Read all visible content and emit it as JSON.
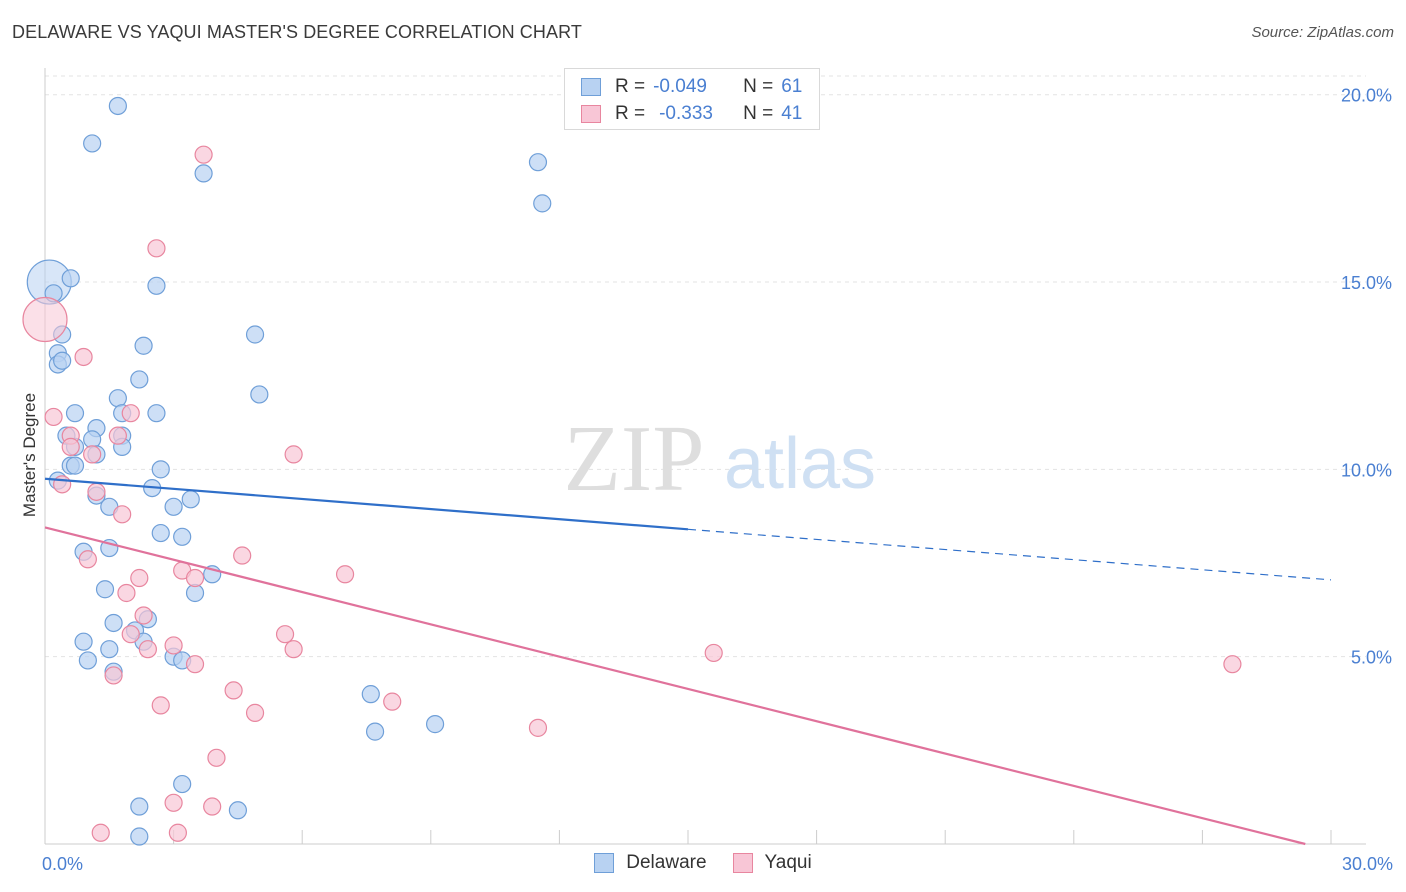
{
  "title": "DELAWARE VS YAQUI MASTER'S DEGREE CORRELATION CHART",
  "source": "Source: ZipAtlas.com",
  "watermark": {
    "zip": "ZIP",
    "atlas": "atlas"
  },
  "legend": {
    "rows": [
      {
        "r_label": "R =",
        "r_value": "-0.049",
        "n_label": "N =",
        "n_value": "61"
      },
      {
        "r_label": "R =",
        "r_value": "-0.333",
        "n_label": "N =",
        "n_value": "41"
      }
    ]
  },
  "colors": {
    "delaware_fill": "#b8d2f2",
    "delaware_stroke": "#6f9fd8",
    "delaware_line": "#2f6fc9",
    "yaqui_fill": "#f8c6d6",
    "yaqui_stroke": "#e8869f",
    "yaqui_line": "#e0729b",
    "tick_text": "#4a7fd1",
    "grid": "#e3e3e3"
  },
  "chart_data": {
    "type": "scatter",
    "title": "DELAWARE VS YAQUI MASTER'S DEGREE CORRELATION CHART",
    "xlabel": "",
    "ylabel": "Master's Degree",
    "xlim": [
      0,
      30
    ],
    "ylim": [
      0,
      20.5
    ],
    "x_tick_labels": [
      {
        "value": 0,
        "label": "0.0%"
      },
      {
        "value": 30,
        "label": "30.0%"
      }
    ],
    "x_minor_ticks": [
      3,
      6,
      9,
      12,
      15,
      18,
      21,
      24,
      27,
      30
    ],
    "y_ticks": [
      {
        "value": 5,
        "label": "5.0%"
      },
      {
        "value": 10,
        "label": "10.0%"
      },
      {
        "value": 15,
        "label": "15.0%"
      },
      {
        "value": 20,
        "label": "20.0%"
      }
    ],
    "grid": true,
    "legend_position": "bottom-center",
    "series": [
      {
        "name": "Delaware",
        "color": "#6f9fd8",
        "points": [
          {
            "x": 1.7,
            "y": 19.7
          },
          {
            "x": 1.1,
            "y": 18.7
          },
          {
            "x": 3.7,
            "y": 17.9
          },
          {
            "x": 11.5,
            "y": 18.2
          },
          {
            "x": 11.6,
            "y": 17.1
          },
          {
            "x": 0.1,
            "y": 15.0,
            "big": true
          },
          {
            "x": 0.2,
            "y": 14.7
          },
          {
            "x": 0.6,
            "y": 15.1
          },
          {
            "x": 2.6,
            "y": 14.9
          },
          {
            "x": 0.4,
            "y": 13.6
          },
          {
            "x": 2.3,
            "y": 13.3
          },
          {
            "x": 4.9,
            "y": 13.6
          },
          {
            "x": 0.3,
            "y": 13.1
          },
          {
            "x": 0.3,
            "y": 12.8
          },
          {
            "x": 0.4,
            "y": 12.9
          },
          {
            "x": 2.2,
            "y": 12.4
          },
          {
            "x": 5.0,
            "y": 12.0
          },
          {
            "x": 1.7,
            "y": 11.9
          },
          {
            "x": 0.7,
            "y": 11.5
          },
          {
            "x": 1.8,
            "y": 11.5
          },
          {
            "x": 2.6,
            "y": 11.5
          },
          {
            "x": 1.2,
            "y": 11.1
          },
          {
            "x": 0.5,
            "y": 10.9
          },
          {
            "x": 1.8,
            "y": 10.9
          },
          {
            "x": 1.1,
            "y": 10.8
          },
          {
            "x": 0.7,
            "y": 10.6
          },
          {
            "x": 1.8,
            "y": 10.6
          },
          {
            "x": 1.2,
            "y": 10.4
          },
          {
            "x": 0.6,
            "y": 10.1
          },
          {
            "x": 0.7,
            "y": 10.1
          },
          {
            "x": 2.7,
            "y": 10.0
          },
          {
            "x": 0.3,
            "y": 9.7
          },
          {
            "x": 2.5,
            "y": 9.5
          },
          {
            "x": 1.2,
            "y": 9.3
          },
          {
            "x": 3.4,
            "y": 9.2
          },
          {
            "x": 3.0,
            "y": 9.0
          },
          {
            "x": 1.5,
            "y": 9.0
          },
          {
            "x": 2.7,
            "y": 8.3
          },
          {
            "x": 3.2,
            "y": 8.2
          },
          {
            "x": 1.5,
            "y": 7.9
          },
          {
            "x": 0.9,
            "y": 7.8
          },
          {
            "x": 3.9,
            "y": 7.2
          },
          {
            "x": 1.4,
            "y": 6.8
          },
          {
            "x": 3.5,
            "y": 6.7
          },
          {
            "x": 2.4,
            "y": 6.0
          },
          {
            "x": 1.6,
            "y": 5.9
          },
          {
            "x": 2.1,
            "y": 5.7
          },
          {
            "x": 2.3,
            "y": 5.4
          },
          {
            "x": 0.9,
            "y": 5.4
          },
          {
            "x": 1.5,
            "y": 5.2
          },
          {
            "x": 3.0,
            "y": 5.0
          },
          {
            "x": 3.2,
            "y": 4.9
          },
          {
            "x": 1.0,
            "y": 4.9
          },
          {
            "x": 1.6,
            "y": 4.6
          },
          {
            "x": 7.6,
            "y": 4.0
          },
          {
            "x": 9.1,
            "y": 3.2
          },
          {
            "x": 7.7,
            "y": 3.0
          },
          {
            "x": 3.2,
            "y": 1.6
          },
          {
            "x": 2.2,
            "y": 1.0
          },
          {
            "x": 4.5,
            "y": 0.9
          },
          {
            "x": 2.2,
            "y": 0.2
          }
        ]
      },
      {
        "name": "Yaqui",
        "color": "#e8869f",
        "points": [
          {
            "x": 3.7,
            "y": 18.4
          },
          {
            "x": 2.6,
            "y": 15.9
          },
          {
            "x": 0.0,
            "y": 14.0,
            "big": true
          },
          {
            "x": 0.9,
            "y": 13.0
          },
          {
            "x": 0.2,
            "y": 11.4
          },
          {
            "x": 2.0,
            "y": 11.5
          },
          {
            "x": 0.6,
            "y": 10.9
          },
          {
            "x": 1.7,
            "y": 10.9
          },
          {
            "x": 0.6,
            "y": 10.6
          },
          {
            "x": 1.1,
            "y": 10.4
          },
          {
            "x": 5.8,
            "y": 10.4
          },
          {
            "x": 0.4,
            "y": 9.6
          },
          {
            "x": 1.2,
            "y": 9.4
          },
          {
            "x": 1.8,
            "y": 8.8
          },
          {
            "x": 1.0,
            "y": 7.6
          },
          {
            "x": 4.6,
            "y": 7.7
          },
          {
            "x": 3.2,
            "y": 7.3
          },
          {
            "x": 2.2,
            "y": 7.1
          },
          {
            "x": 3.5,
            "y": 7.1
          },
          {
            "x": 7.0,
            "y": 7.2
          },
          {
            "x": 1.9,
            "y": 6.7
          },
          {
            "x": 2.3,
            "y": 6.1
          },
          {
            "x": 2.0,
            "y": 5.6
          },
          {
            "x": 5.6,
            "y": 5.6
          },
          {
            "x": 3.0,
            "y": 5.3
          },
          {
            "x": 2.4,
            "y": 5.2
          },
          {
            "x": 5.8,
            "y": 5.2
          },
          {
            "x": 15.6,
            "y": 5.1
          },
          {
            "x": 3.5,
            "y": 4.8
          },
          {
            "x": 27.7,
            "y": 4.8
          },
          {
            "x": 1.6,
            "y": 4.5
          },
          {
            "x": 4.4,
            "y": 4.1
          },
          {
            "x": 8.1,
            "y": 3.8
          },
          {
            "x": 2.7,
            "y": 3.7
          },
          {
            "x": 4.9,
            "y": 3.5
          },
          {
            "x": 11.5,
            "y": 3.1
          },
          {
            "x": 4.0,
            "y": 2.3
          },
          {
            "x": 3.0,
            "y": 1.1
          },
          {
            "x": 3.9,
            "y": 1.0
          },
          {
            "x": 3.1,
            "y": 0.3
          },
          {
            "x": 1.3,
            "y": 0.3
          }
        ]
      }
    ],
    "trend_lines": [
      {
        "series": "Delaware",
        "x1": 0,
        "y1": 9.75,
        "x2": 15.0,
        "y2": 8.4,
        "x_dash_end": 30,
        "y_dash_end": 7.05
      },
      {
        "series": "Yaqui",
        "x1": 0,
        "y1": 8.45,
        "x2": 29.4,
        "y2": 0.0
      }
    ]
  },
  "bottom_legend": [
    {
      "label": "Delaware"
    },
    {
      "label": "Yaqui"
    }
  ]
}
